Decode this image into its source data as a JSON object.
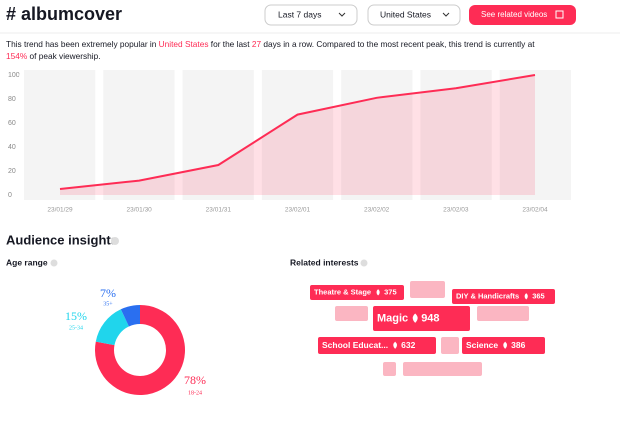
{
  "header": {
    "title": "# albumcover",
    "period": "Last 7 days",
    "country": "United States",
    "button": "See related videos"
  },
  "description": {
    "text1": "This trend has been extremely popular in ",
    "country": "United States",
    "text2": " for the last ",
    "days": 27,
    "text3": " days in a row. Compared to the most recent peak, this trend is currently at ",
    "percent": "154%",
    "text4": " of peak viewership."
  },
  "chart_data": [
    {
      "type": "line",
      "categories": [
        "23/01/29",
        "23/01/30",
        "23/01/31",
        "23/02/01",
        "23/02/02",
        "23/02/03",
        "23/02/04"
      ],
      "values": [
        5,
        12,
        25,
        67,
        81,
        89,
        100
      ],
      "color": "#fe2c55",
      "ylim": [
        0,
        100
      ],
      "yticks": [
        0,
        20,
        40,
        60,
        80,
        100
      ],
      "grid": false
    },
    {
      "type": "donut",
      "title": "Age range",
      "categories": [
        "18-24",
        "25-34",
        "35+"
      ],
      "values": [
        78,
        15,
        7
      ],
      "value_labels": [
        "78%",
        "15%",
        "7%"
      ],
      "colors": [
        "#fe2c55",
        "#20d5ec",
        "#2a6ff0"
      ]
    }
  ],
  "audience": {
    "title": "Audience insights",
    "interests_title": "Related interests"
  },
  "interests": [
    {
      "name": "Theatre & Stage",
      "count": 375
    },
    {
      "name": "DIY & Handicrafts",
      "count": 365
    },
    {
      "name": "Magic",
      "count": 948
    },
    {
      "name": "School Educat...",
      "count": 632
    },
    {
      "name": "Science",
      "count": 386
    }
  ]
}
